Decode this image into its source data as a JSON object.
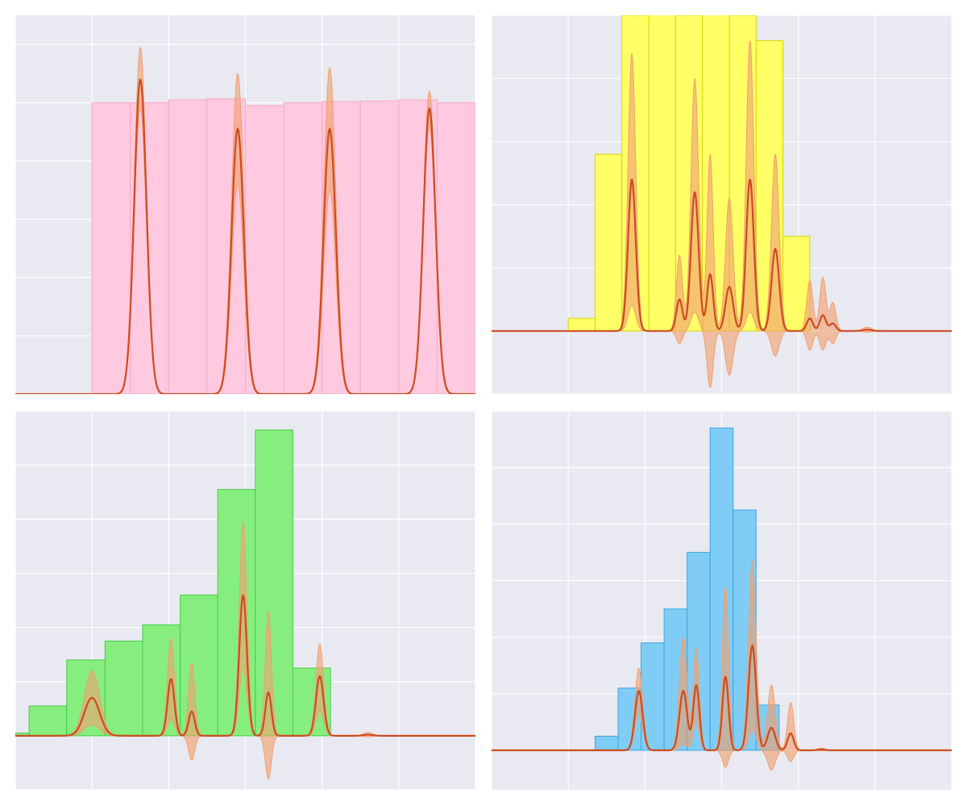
{
  "figure": {
    "background": "#ffffff",
    "panel_background": "#e9e9f1",
    "grid_color": "#ffffff",
    "kde_line_color": "#cc4c1f",
    "kde_band_color": "#f0a070"
  },
  "chart_data": [
    {
      "type": "bar",
      "panel": "top-left",
      "bar_color": "#ffc9df",
      "bar_edge": "#f6a9c8",
      "xlim": [
        0,
        6
      ],
      "ylim": [
        0,
        6.5
      ],
      "grid": true,
      "bins": [
        {
          "x0": 1.0,
          "x1": 1.5,
          "value": 5.0
        },
        {
          "x0": 1.5,
          "x1": 2.0,
          "value": 5.0
        },
        {
          "x0": 2.0,
          "x1": 2.5,
          "value": 5.05
        },
        {
          "x0": 2.5,
          "x1": 3.0,
          "value": 5.07
        },
        {
          "x0": 3.0,
          "x1": 3.5,
          "value": 4.95
        },
        {
          "x0": 3.5,
          "x1": 4.0,
          "value": 5.0
        },
        {
          "x0": 4.0,
          "x1": 4.5,
          "value": 5.02
        },
        {
          "x0": 4.5,
          "x1": 5.0,
          "value": 5.03
        },
        {
          "x0": 5.0,
          "x1": 5.5,
          "value": 5.05
        },
        {
          "x0": 5.5,
          "x1": 6.0,
          "value": 5.0
        }
      ],
      "kde_peaks": [
        {
          "x": 1.63,
          "height": 5.4,
          "upper": 5.95,
          "lower": 4.9,
          "width": 0.08
        },
        {
          "x": 2.9,
          "height": 4.55,
          "upper": 5.5,
          "lower": 3.6,
          "width": 0.08
        },
        {
          "x": 4.1,
          "height": 4.55,
          "upper": 5.6,
          "lower": 3.5,
          "width": 0.08
        },
        {
          "x": 5.4,
          "height": 4.9,
          "upper": 5.2,
          "lower": 4.6,
          "width": 0.08
        }
      ]
    },
    {
      "type": "bar",
      "panel": "top-right",
      "bar_color": "#ffff66",
      "bar_edge": "#d4d40c",
      "xlim": [
        0,
        6
      ],
      "ylim": [
        -1,
        5
      ],
      "grid": true,
      "bins": [
        {
          "x0": 1.0,
          "x1": 1.35,
          "value": 0.2
        },
        {
          "x0": 1.35,
          "x1": 1.7,
          "value": 2.8
        },
        {
          "x0": 1.7,
          "x1": 2.05,
          "value": 5.0
        },
        {
          "x0": 2.05,
          "x1": 2.4,
          "value": 5.1
        },
        {
          "x0": 2.4,
          "x1": 2.75,
          "value": 5.0
        },
        {
          "x0": 2.75,
          "x1": 3.1,
          "value": 5.05
        },
        {
          "x0": 3.1,
          "x1": 3.45,
          "value": 5.0
        },
        {
          "x0": 3.45,
          "x1": 3.8,
          "value": 4.6
        },
        {
          "x0": 3.8,
          "x1": 4.15,
          "value": 1.5
        }
      ],
      "kde_peaks": [
        {
          "x": 1.83,
          "height": 2.4,
          "upper": 4.4,
          "lower": 0.4,
          "width": 0.05
        },
        {
          "x": 2.45,
          "height": 0.5,
          "upper": 1.2,
          "lower": -0.2,
          "width": 0.04
        },
        {
          "x": 2.65,
          "height": 2.2,
          "upper": 4.0,
          "lower": 0.3,
          "width": 0.05
        },
        {
          "x": 2.85,
          "height": 0.9,
          "upper": 2.8,
          "lower": -0.9,
          "width": 0.04
        },
        {
          "x": 3.1,
          "height": 0.7,
          "upper": 2.1,
          "lower": -0.7,
          "width": 0.05
        },
        {
          "x": 3.37,
          "height": 2.4,
          "upper": 4.6,
          "lower": 0.3,
          "width": 0.05
        },
        {
          "x": 3.7,
          "height": 1.3,
          "upper": 2.8,
          "lower": -0.4,
          "width": 0.05
        },
        {
          "x": 4.15,
          "height": 0.2,
          "upper": 0.8,
          "lower": -0.3,
          "width": 0.04
        },
        {
          "x": 4.32,
          "height": 0.25,
          "upper": 0.85,
          "lower": -0.3,
          "width": 0.04
        },
        {
          "x": 4.45,
          "height": 0.12,
          "upper": 0.45,
          "lower": -0.2,
          "width": 0.04
        },
        {
          "x": 4.9,
          "height": 0.02,
          "upper": 0.06,
          "lower": -0.02,
          "width": 0.06
        }
      ]
    },
    {
      "type": "bar",
      "panel": "bottom-left",
      "bar_color": "#86ee7e",
      "bar_edge": "#45cc45",
      "xlim": [
        0,
        6
      ],
      "ylim": [
        -1,
        6
      ],
      "grid": true,
      "bins": [
        {
          "x0": 0.0,
          "x1": 0.18,
          "value": 0.05
        },
        {
          "x0": 0.18,
          "x1": 0.67,
          "value": 0.55
        },
        {
          "x0": 0.67,
          "x1": 1.17,
          "value": 1.4
        },
        {
          "x0": 1.17,
          "x1": 1.66,
          "value": 1.75
        },
        {
          "x0": 1.66,
          "x1": 2.15,
          "value": 2.05
        },
        {
          "x0": 2.15,
          "x1": 2.64,
          "value": 2.6
        },
        {
          "x0": 2.64,
          "x1": 3.13,
          "value": 4.55
        },
        {
          "x0": 3.13,
          "x1": 3.62,
          "value": 5.65
        },
        {
          "x0": 3.62,
          "x1": 4.11,
          "value": 1.25
        }
      ],
      "kde_peaks": [
        {
          "x": 1.0,
          "height": 0.7,
          "upper": 1.2,
          "lower": 0.2,
          "width": 0.1
        },
        {
          "x": 2.03,
          "height": 1.05,
          "upper": 1.8,
          "lower": 0.3,
          "width": 0.045
        },
        {
          "x": 2.3,
          "height": 0.45,
          "upper": 1.35,
          "lower": -0.45,
          "width": 0.04
        },
        {
          "x": 2.97,
          "height": 2.6,
          "upper": 3.95,
          "lower": 1.25,
          "width": 0.05
        },
        {
          "x": 3.3,
          "height": 0.8,
          "upper": 2.3,
          "lower": -0.8,
          "width": 0.04
        },
        {
          "x": 3.97,
          "height": 1.1,
          "upper": 1.7,
          "lower": 0.45,
          "width": 0.05
        },
        {
          "x": 4.6,
          "height": 0.02,
          "upper": 0.06,
          "lower": -0.02,
          "width": 0.06
        }
      ]
    },
    {
      "type": "bar",
      "panel": "bottom-right",
      "bar_color": "#7fcdf5",
      "bar_edge": "#3ba5df",
      "xlim": [
        0,
        6
      ],
      "ylim": [
        -0.7,
        6
      ],
      "grid": true,
      "bins": [
        {
          "x0": 1.35,
          "x1": 1.65,
          "value": 0.25
        },
        {
          "x0": 1.65,
          "x1": 1.95,
          "value": 1.1
        },
        {
          "x0": 1.95,
          "x1": 2.25,
          "value": 1.9
        },
        {
          "x0": 2.25,
          "x1": 2.55,
          "value": 2.5
        },
        {
          "x0": 2.55,
          "x1": 2.85,
          "value": 3.5
        },
        {
          "x0": 2.85,
          "x1": 3.15,
          "value": 5.7
        },
        {
          "x0": 3.15,
          "x1": 3.45,
          "value": 4.25
        },
        {
          "x0": 3.45,
          "x1": 3.75,
          "value": 0.8
        }
      ],
      "kde_peaks": [
        {
          "x": 1.92,
          "height": 1.05,
          "upper": 1.45,
          "lower": 0.65,
          "width": 0.05
        },
        {
          "x": 2.5,
          "height": 1.05,
          "upper": 2.0,
          "lower": 0.1,
          "width": 0.05
        },
        {
          "x": 2.67,
          "height": 1.15,
          "upper": 1.8,
          "lower": 0.5,
          "width": 0.04
        },
        {
          "x": 3.05,
          "height": 1.3,
          "upper": 2.9,
          "lower": -0.3,
          "width": 0.04
        },
        {
          "x": 3.4,
          "height": 1.85,
          "upper": 3.35,
          "lower": 0.35,
          "width": 0.05
        },
        {
          "x": 3.65,
          "height": 0.4,
          "upper": 1.15,
          "lower": -0.35,
          "width": 0.05
        },
        {
          "x": 3.9,
          "height": 0.3,
          "upper": 0.85,
          "lower": -0.2,
          "width": 0.04
        },
        {
          "x": 4.3,
          "height": 0.015,
          "upper": 0.04,
          "lower": -0.01,
          "width": 0.05
        }
      ]
    }
  ]
}
